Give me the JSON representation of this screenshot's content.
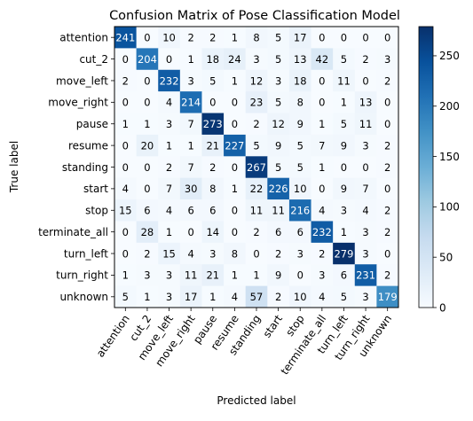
{
  "chart_data": {
    "type": "heatmap",
    "title": "Confusion Matrix of Pose Classification Model",
    "xlabel": "Predicted label",
    "ylabel": "True label",
    "labels": [
      "attention",
      "cut_2",
      "move_left",
      "move_right",
      "pause",
      "resume",
      "standing",
      "start",
      "stop",
      "terminate_all",
      "turn_left",
      "turn_right",
      "unknown"
    ],
    "matrix": [
      [
        241,
        0,
        10,
        2,
        2,
        1,
        8,
        5,
        17,
        0,
        0,
        0,
        0
      ],
      [
        0,
        204,
        0,
        1,
        18,
        24,
        3,
        5,
        13,
        42,
        5,
        2,
        3
      ],
      [
        2,
        0,
        232,
        3,
        5,
        1,
        12,
        3,
        18,
        0,
        11,
        0,
        2
      ],
      [
        0,
        0,
        4,
        214,
        0,
        0,
        23,
        5,
        8,
        0,
        1,
        13,
        0
      ],
      [
        1,
        1,
        3,
        7,
        273,
        0,
        2,
        12,
        9,
        1,
        5,
        11,
        0
      ],
      [
        0,
        20,
        1,
        1,
        21,
        227,
        5,
        9,
        5,
        7,
        9,
        3,
        2
      ],
      [
        0,
        0,
        2,
        7,
        2,
        0,
        267,
        5,
        5,
        1,
        0,
        0,
        2
      ],
      [
        4,
        0,
        7,
        30,
        8,
        1,
        22,
        226,
        10,
        0,
        9,
        7,
        0
      ],
      [
        15,
        6,
        4,
        6,
        6,
        0,
        11,
        11,
        216,
        4,
        3,
        4,
        2
      ],
      [
        0,
        28,
        1,
        0,
        14,
        0,
        2,
        6,
        6,
        232,
        1,
        3,
        2
      ],
      [
        0,
        2,
        15,
        4,
        3,
        8,
        0,
        2,
        3,
        2,
        279,
        3,
        0
      ],
      [
        1,
        3,
        3,
        11,
        21,
        1,
        1,
        9,
        0,
        3,
        6,
        231,
        2
      ],
      [
        5,
        1,
        3,
        17,
        1,
        4,
        57,
        2,
        10,
        4,
        5,
        3,
        179
      ]
    ],
    "colorbar": {
      "min": 0,
      "max": 279,
      "ticks": [
        0,
        50,
        100,
        150,
        200,
        250
      ],
      "colormap": "Blues"
    },
    "colors": {
      "low": "#f7fbff",
      "high": "#08306b",
      "text_on_dark": "#ffffff",
      "text_on_light": "#000000"
    }
  }
}
